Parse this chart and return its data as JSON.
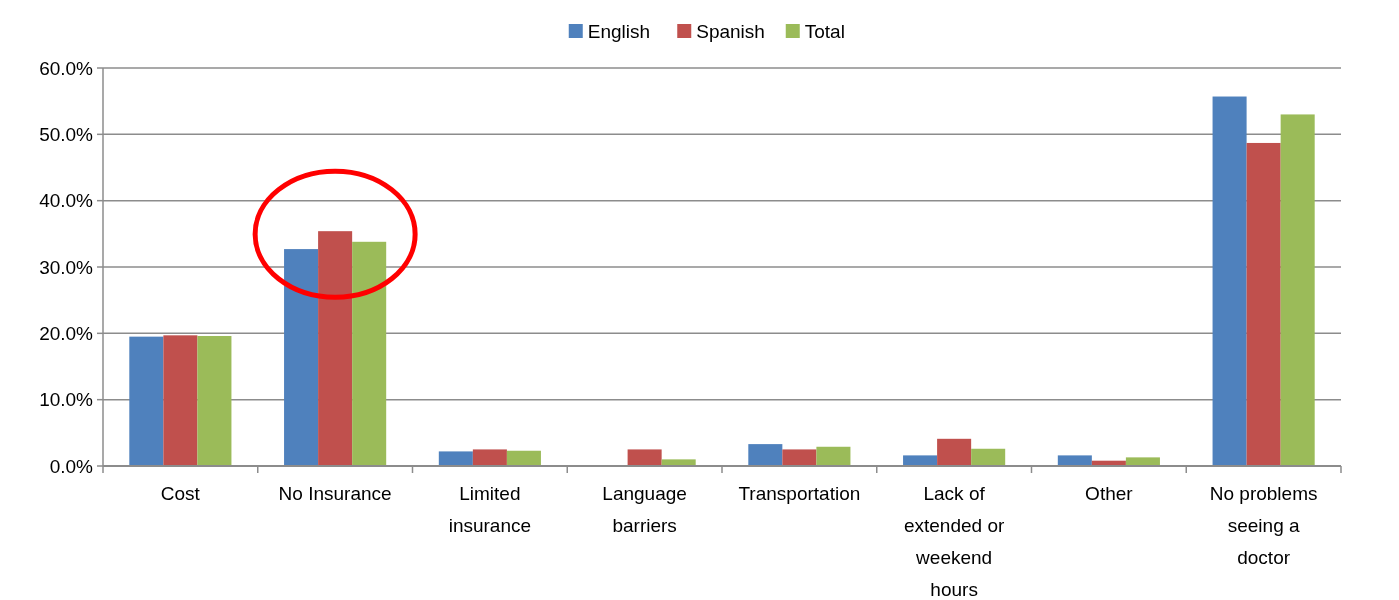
{
  "chart_data": {
    "type": "bar",
    "categories": [
      "Cost",
      "No Insurance",
      "Limited insurance",
      "Language barriers",
      "Transportation",
      "Lack of extended or weekend hours",
      "Other",
      "No problems seeing a doctor"
    ],
    "series": [
      {
        "name": "English",
        "color": "#4f81bd",
        "values": [
          19.5,
          32.7,
          2.2,
          0,
          3.3,
          1.6,
          1.6,
          55.7
        ]
      },
      {
        "name": "Spanish",
        "color": "#c0504d",
        "values": [
          19.7,
          35.4,
          2.5,
          2.5,
          2.5,
          4.1,
          0.8,
          48.7
        ]
      },
      {
        "name": "Total",
        "color": "#9bbb59",
        "values": [
          19.6,
          33.8,
          2.3,
          1.0,
          2.9,
          2.6,
          1.3,
          53.0
        ]
      }
    ],
    "ylim": [
      0,
      60
    ],
    "yticks": [
      {
        "value": 0,
        "label": "0.0%"
      },
      {
        "value": 10,
        "label": "10.0%"
      },
      {
        "value": 20,
        "label": "20.0%"
      },
      {
        "value": 30,
        "label": "30.0%"
      },
      {
        "value": 40,
        "label": "40.0%"
      },
      {
        "value": 50,
        "label": "50.0%"
      },
      {
        "value": 60,
        "label": "60.0%"
      }
    ],
    "grid": "y",
    "legend": "top"
  }
}
